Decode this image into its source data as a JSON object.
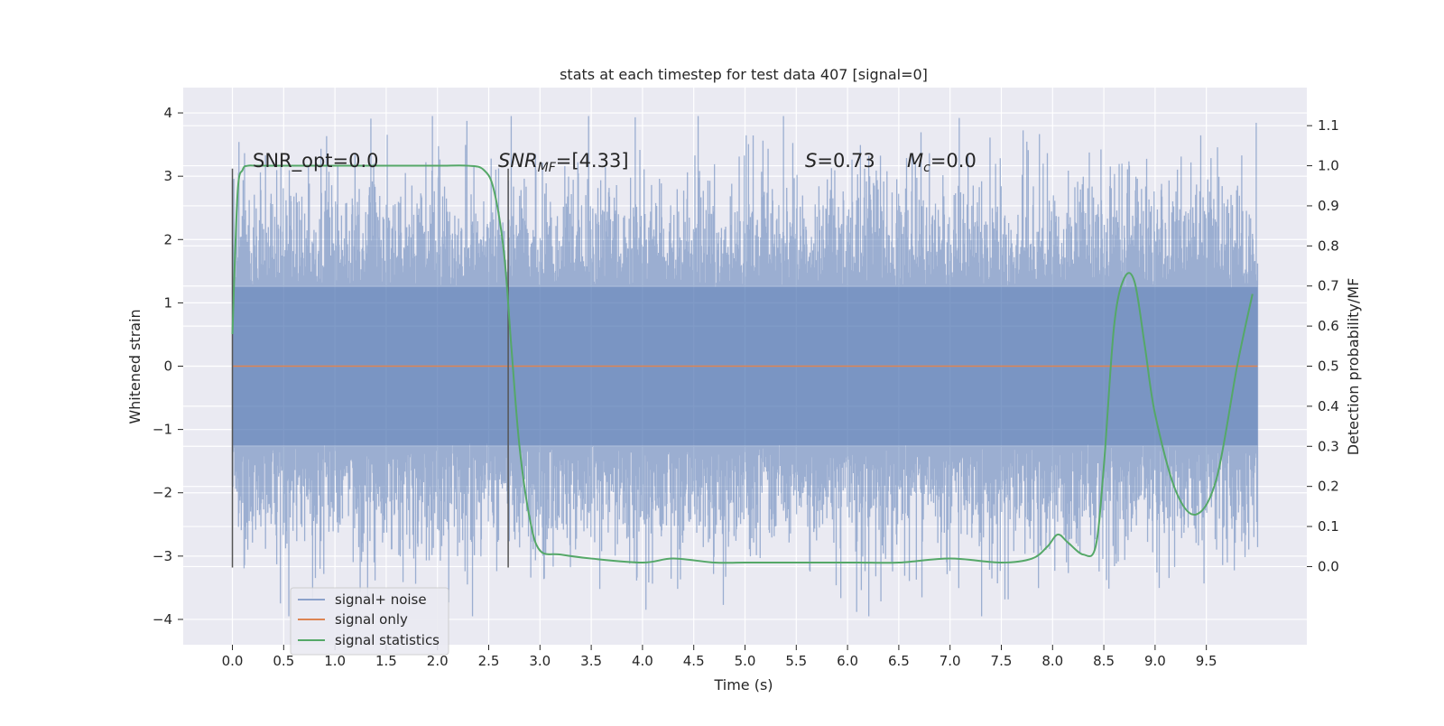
{
  "chart_data": {
    "type": "line",
    "title": "stats at each timestep for test data 407 [signal=0]",
    "xlabel": "Time (s)",
    "ylabel": "Whitened strain",
    "y2label": "Detection probability/MF",
    "xlim": [
      -0.48,
      10.48
    ],
    "ylim": [
      -4.4,
      4.4
    ],
    "y2lim": [
      -0.195,
      1.195
    ],
    "x_ticks": [
      "0.0",
      "0.5",
      "1.0",
      "1.5",
      "2.0",
      "2.5",
      "3.0",
      "3.5",
      "4.0",
      "4.5",
      "5.0",
      "5.5",
      "6.0",
      "6.5",
      "7.0",
      "7.5",
      "8.0",
      "8.5",
      "9.0",
      "9.5"
    ],
    "y_ticks": [
      "4",
      "3",
      "2",
      "1",
      "0",
      "−1",
      "−2",
      "−3",
      "−4"
    ],
    "y2_ticks": [
      "1.1",
      "1.0",
      "0.9",
      "0.8",
      "0.7",
      "0.6",
      "0.5",
      "0.4",
      "0.3",
      "0.2",
      "0.1",
      "0.0"
    ],
    "grid": true,
    "legend_position": "lower-left",
    "annotations": {
      "snr_opt": "SNR_opt=0.0",
      "snr_mf_prefix": "SNR",
      "snr_mf_sub": "MF",
      "snr_mf_suffix": "=[4.33]",
      "s_prefix": "S",
      "s_suffix": "=0.73",
      "mc_prefix": "M",
      "mc_sub": "c",
      "mc_suffix": "=0.0"
    },
    "window_markers_x": [
      0.0,
      2.69
    ],
    "series": [
      {
        "name": "signal+ noise",
        "color": "#4c72b0",
        "description_values": "dense whitened noise between about -4 and +4",
        "x_range": [
          0.0,
          10.0
        ]
      },
      {
        "name": "signal only",
        "color": "#dd8452",
        "x": [
          0.0,
          10.0
        ],
        "values": [
          0.0,
          0.0
        ]
      },
      {
        "name": "signal statistics",
        "color": "#55a868",
        "axis": "right",
        "x": [
          0.0,
          0.05,
          0.1,
          0.15,
          0.25,
          0.5,
          1.0,
          1.5,
          2.0,
          2.3,
          2.45,
          2.55,
          2.65,
          2.72,
          2.8,
          2.9,
          3.0,
          3.2,
          3.5,
          4.0,
          4.3,
          4.7,
          5.0,
          5.5,
          5.7,
          6.1,
          6.5,
          7.0,
          7.5,
          7.8,
          7.95,
          8.05,
          8.15,
          8.3,
          8.42,
          8.5,
          8.6,
          8.7,
          8.8,
          8.9,
          9.0,
          9.2,
          9.4,
          9.6,
          9.8,
          9.95
        ],
        "values": [
          0.58,
          0.93,
          0.99,
          1.0,
          1.0,
          1.0,
          1.0,
          1.0,
          1.0,
          1.0,
          0.99,
          0.94,
          0.78,
          0.55,
          0.3,
          0.12,
          0.04,
          0.03,
          0.02,
          0.01,
          0.02,
          0.01,
          0.01,
          0.01,
          0.01,
          0.01,
          0.01,
          0.02,
          0.01,
          0.02,
          0.05,
          0.08,
          0.06,
          0.03,
          0.05,
          0.25,
          0.6,
          0.72,
          0.71,
          0.55,
          0.38,
          0.19,
          0.13,
          0.22,
          0.5,
          0.68
        ]
      }
    ]
  }
}
